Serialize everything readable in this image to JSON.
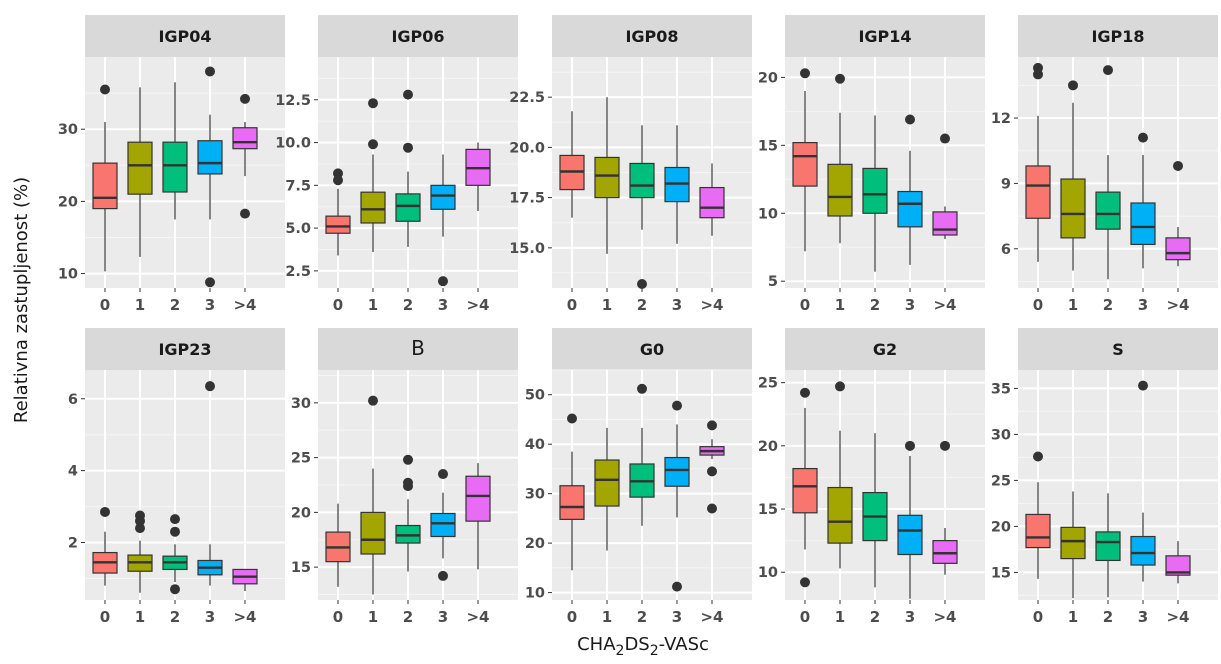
{
  "chart_data": {
    "type": "boxplot",
    "y_axis_label": "Relativna zastupljenost (%)",
    "x_axis_label": {
      "prefix": "CHA",
      "sub1": "2",
      "mid": "DS",
      "sub2": "2",
      "suffix": "-VASc"
    },
    "categories": [
      "0",
      "1",
      "2",
      "3",
      ">4"
    ],
    "colors": [
      "#F8766D",
      "#A3A500",
      "#00BF7D",
      "#00B0F6",
      "#E76BF3"
    ],
    "panel_background": "#EBEBEB",
    "strip_background": "#D9D9D9",
    "grid": true,
    "facets": [
      {
        "title": "IGP04",
        "ylim": [
          8,
          40
        ],
        "yticks": [
          10,
          20,
          30
        ],
        "boxes": [
          {
            "q1": 19,
            "median": 20.5,
            "q3": 25.3,
            "lo": 10.3,
            "hi": 31,
            "outliers": [
              35.5
            ]
          },
          {
            "q1": 21,
            "median": 25,
            "q3": 28.2,
            "lo": 12.3,
            "hi": 35.8,
            "outliers": []
          },
          {
            "q1": 21.3,
            "median": 25,
            "q3": 28.2,
            "lo": 17.5,
            "hi": 36.5,
            "outliers": []
          },
          {
            "q1": 23.8,
            "median": 25.3,
            "q3": 28.4,
            "lo": 17.5,
            "hi": 32,
            "outliers": [
              38,
              8.8
            ]
          },
          {
            "q1": 27.3,
            "median": 28.2,
            "q3": 30.2,
            "lo": 23.5,
            "hi": 31,
            "outliers": [
              34.2,
              18.3
            ]
          }
        ]
      },
      {
        "title": "IGP06",
        "ylim": [
          1.5,
          15
        ],
        "yticks": [
          2.5,
          5.0,
          7.5,
          10.0,
          12.5
        ],
        "tick_decimals": 1,
        "boxes": [
          {
            "q1": 4.7,
            "median": 5.1,
            "q3": 5.7,
            "lo": 3.4,
            "hi": 7.3,
            "outliers": [
              8.2,
              7.8
            ]
          },
          {
            "q1": 5.3,
            "median": 6.1,
            "q3": 7.1,
            "lo": 3.6,
            "hi": 9.3,
            "outliers": [
              12.3,
              9.9
            ]
          },
          {
            "q1": 5.4,
            "median": 6.3,
            "q3": 7.0,
            "lo": 3.9,
            "hi": 8.3,
            "outliers": [
              12.8,
              9.7
            ]
          },
          {
            "q1": 6.1,
            "median": 6.9,
            "q3": 7.5,
            "lo": 4.5,
            "hi": 9.3,
            "outliers": [
              1.9
            ]
          },
          {
            "q1": 7.5,
            "median": 8.5,
            "q3": 9.6,
            "lo": 6.0,
            "hi": 10.0,
            "outliers": []
          }
        ]
      },
      {
        "title": "IGP08",
        "ylim": [
          13,
          24.5
        ],
        "yticks": [
          15.0,
          17.5,
          20.0,
          22.5
        ],
        "tick_decimals": 1,
        "boxes": [
          {
            "q1": 17.9,
            "median": 18.8,
            "q3": 19.6,
            "lo": 16.5,
            "hi": 21.8,
            "outliers": []
          },
          {
            "q1": 17.5,
            "median": 18.6,
            "q3": 19.5,
            "lo": 14.7,
            "hi": 22.5,
            "outliers": []
          },
          {
            "q1": 17.5,
            "median": 18.1,
            "q3": 19.2,
            "lo": 15.9,
            "hi": 21.1,
            "outliers": [
              13.2
            ]
          },
          {
            "q1": 17.3,
            "median": 18.2,
            "q3": 19.0,
            "lo": 15.2,
            "hi": 21.1,
            "outliers": []
          },
          {
            "q1": 16.5,
            "median": 17.0,
            "q3": 18.0,
            "lo": 15.6,
            "hi": 19.2,
            "outliers": []
          }
        ]
      },
      {
        "title": "IGP14",
        "ylim": [
          4.5,
          21.5
        ],
        "yticks": [
          5,
          10,
          15,
          20
        ],
        "boxes": [
          {
            "q1": 12,
            "median": 14.2,
            "q3": 15.2,
            "lo": 7.2,
            "hi": 19,
            "outliers": [
              20.3
            ]
          },
          {
            "q1": 9.8,
            "median": 11.2,
            "q3": 13.6,
            "lo": 7.8,
            "hi": 17.4,
            "outliers": [
              19.9
            ]
          },
          {
            "q1": 10,
            "median": 11.4,
            "q3": 13.3,
            "lo": 5.7,
            "hi": 17.2,
            "outliers": []
          },
          {
            "q1": 9,
            "median": 10.7,
            "q3": 11.6,
            "lo": 6.2,
            "hi": 14.6,
            "outliers": [
              16.9
            ]
          },
          {
            "q1": 8.4,
            "median": 8.8,
            "q3": 10.1,
            "lo": 8.1,
            "hi": 10.5,
            "outliers": [
              15.5
            ]
          }
        ]
      },
      {
        "title": "IGP18",
        "ylim": [
          4.2,
          14.8
        ],
        "yticks": [
          6,
          9,
          12
        ],
        "boxes": [
          {
            "q1": 7.4,
            "median": 8.9,
            "q3": 9.8,
            "lo": 5.4,
            "hi": 12.1,
            "outliers": [
              14.3,
              14.0
            ]
          },
          {
            "q1": 6.5,
            "median": 7.6,
            "q3": 9.2,
            "lo": 5.0,
            "hi": 12.7,
            "outliers": [
              13.5
            ]
          },
          {
            "q1": 6.9,
            "median": 7.6,
            "q3": 8.6,
            "lo": 4.6,
            "hi": 10.3,
            "outliers": [
              14.2
            ]
          },
          {
            "q1": 6.2,
            "median": 7.0,
            "q3": 8.1,
            "lo": 5.1,
            "hi": 10.3,
            "outliers": [
              11.1
            ]
          },
          {
            "q1": 5.5,
            "median": 5.8,
            "q3": 6.5,
            "lo": 5.2,
            "hi": 7.0,
            "outliers": [
              9.8
            ]
          }
        ]
      },
      {
        "title": "IGP23",
        "ylim": [
          0.4,
          6.8
        ],
        "yticks": [
          2,
          4,
          6
        ],
        "boxes": [
          {
            "q1": 1.15,
            "median": 1.45,
            "q3": 1.72,
            "lo": 0.8,
            "hi": 2.3,
            "outliers": [
              2.85
            ]
          },
          {
            "q1": 1.2,
            "median": 1.45,
            "q3": 1.65,
            "lo": 0.6,
            "hi": 2.05,
            "outliers": [
              2.75,
              2.6,
              2.4
            ]
          },
          {
            "q1": 1.25,
            "median": 1.45,
            "q3": 1.62,
            "lo": 0.9,
            "hi": 1.95,
            "outliers": [
              2.65,
              2.3,
              0.7
            ]
          },
          {
            "q1": 1.1,
            "median": 1.3,
            "q3": 1.5,
            "lo": 0.8,
            "hi": 1.95,
            "outliers": [
              6.35
            ]
          },
          {
            "q1": 0.85,
            "median": 1.05,
            "q3": 1.25,
            "lo": 0.65,
            "hi": 1.25,
            "outliers": []
          }
        ]
      },
      {
        "title": "B",
        "title_plain": true,
        "ylim": [
          12,
          33
        ],
        "yticks": [
          15,
          20,
          25,
          30
        ],
        "boxes": [
          {
            "q1": 15.5,
            "median": 16.8,
            "q3": 18.2,
            "lo": 13.2,
            "hi": 20.8,
            "outliers": []
          },
          {
            "q1": 16.2,
            "median": 17.5,
            "q3": 20.0,
            "lo": 12.5,
            "hi": 24.0,
            "outliers": [
              30.2
            ]
          },
          {
            "q1": 17.2,
            "median": 17.9,
            "q3": 18.8,
            "lo": 14.6,
            "hi": 21.2,
            "outliers": [
              24.8,
              22.7,
              22.4
            ]
          },
          {
            "q1": 17.8,
            "median": 19.0,
            "q3": 19.9,
            "lo": 15.8,
            "hi": 21.8,
            "outliers": [
              23.5,
              14.2
            ]
          },
          {
            "q1": 19.2,
            "median": 21.5,
            "q3": 23.3,
            "lo": 14.8,
            "hi": 24.5,
            "outliers": []
          }
        ]
      },
      {
        "title": "G0",
        "ylim": [
          8.5,
          55
        ],
        "yticks": [
          10,
          20,
          30,
          40,
          50
        ],
        "boxes": [
          {
            "q1": 24.8,
            "median": 27.3,
            "q3": 31.6,
            "lo": 14.5,
            "hi": 38.5,
            "outliers": [
              45.2
            ]
          },
          {
            "q1": 27.5,
            "median": 32.8,
            "q3": 36.8,
            "lo": 18.5,
            "hi": 43.3,
            "outliers": []
          },
          {
            "q1": 29.3,
            "median": 32.5,
            "q3": 36.0,
            "lo": 23.5,
            "hi": 43.3,
            "outliers": [
              51.2
            ]
          },
          {
            "q1": 31.5,
            "median": 34.8,
            "q3": 37.3,
            "lo": 25.2,
            "hi": 44.0,
            "outliers": [
              47.8,
              11.2
            ]
          },
          {
            "q1": 37.8,
            "median": 38.6,
            "q3": 39.5,
            "lo": 37.0,
            "hi": 41.0,
            "outliers": [
              43.8,
              34.5,
              27.0
            ]
          }
        ]
      },
      {
        "title": "G2",
        "ylim": [
          7.8,
          26
        ],
        "yticks": [
          10,
          15,
          20,
          25
        ],
        "boxes": [
          {
            "q1": 14.7,
            "median": 16.8,
            "q3": 18.2,
            "lo": 11.8,
            "hi": 23.0,
            "outliers": [
              24.2,
              9.2
            ]
          },
          {
            "q1": 12.3,
            "median": 14.0,
            "q3": 16.7,
            "lo": 10.3,
            "hi": 21.2,
            "outliers": [
              24.7
            ]
          },
          {
            "q1": 12.5,
            "median": 14.4,
            "q3": 16.3,
            "lo": 8.8,
            "hi": 21.0,
            "outliers": []
          },
          {
            "q1": 11.4,
            "median": 13.3,
            "q3": 14.5,
            "lo": 7.9,
            "hi": 19.2,
            "outliers": [
              20.0
            ]
          },
          {
            "q1": 10.7,
            "median": 11.5,
            "q3": 12.5,
            "lo": 9.8,
            "hi": 13.5,
            "outliers": [
              20.0
            ]
          }
        ]
      },
      {
        "title": "S",
        "ylim": [
          12,
          37
        ],
        "yticks": [
          15,
          20,
          25,
          30,
          35
        ],
        "boxes": [
          {
            "q1": 17.7,
            "median": 18.8,
            "q3": 21.3,
            "lo": 14.3,
            "hi": 24.8,
            "outliers": [
              27.6
            ]
          },
          {
            "q1": 16.5,
            "median": 18.4,
            "q3": 19.9,
            "lo": 12.2,
            "hi": 23.8,
            "outliers": []
          },
          {
            "q1": 16.3,
            "median": 18.3,
            "q3": 19.4,
            "lo": 12.3,
            "hi": 23.6,
            "outliers": []
          },
          {
            "q1": 15.8,
            "median": 17.1,
            "q3": 18.9,
            "lo": 14.0,
            "hi": 21.5,
            "outliers": [
              35.3
            ]
          },
          {
            "q1": 14.7,
            "median": 15.0,
            "q3": 16.8,
            "lo": 13.8,
            "hi": 18.4,
            "outliers": []
          }
        ]
      }
    ]
  }
}
